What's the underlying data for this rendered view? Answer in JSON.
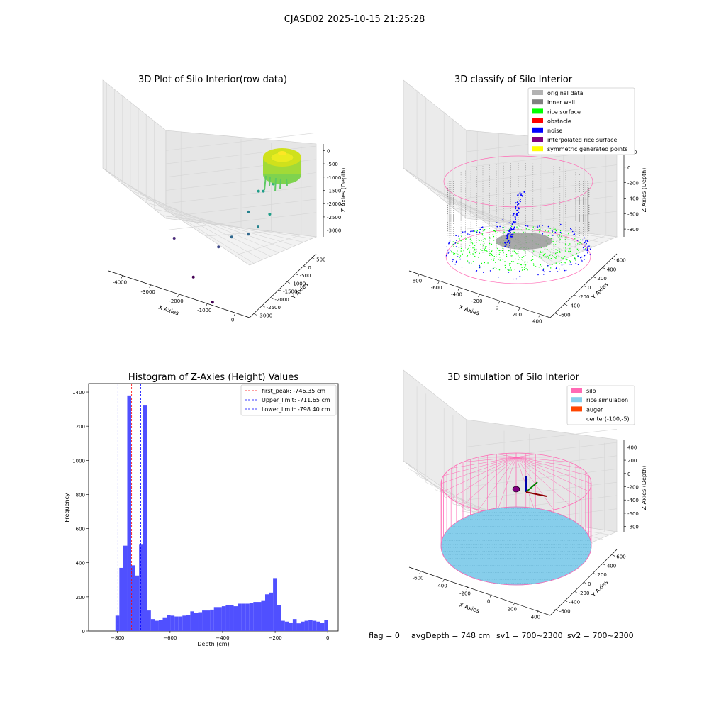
{
  "suptitle": "CJASD02 2025-10-15 21:25:28",
  "footer": {
    "flag": "flag = 0",
    "avg_depth": "avgDepth = 748 cm",
    "sv1": "sv1 = 700~2300",
    "sv2": "sv2 = 700~2300"
  },
  "colors": {
    "original_data": "#b3b3b3",
    "inner_wall": "#808080",
    "rice_surface": "#00ff00",
    "obstacle": "#ff0000",
    "noise": "#0000ff",
    "interpolated_rice_surface": "#800080",
    "symmetric_generated_points": "#ffff00",
    "silo": "#ff69b4",
    "rice_simulation": "#87ceeb",
    "auger": "#ff4500",
    "hist_bar": "#5050ff"
  },
  "chart_data": [
    {
      "type": "scatter",
      "projection": "3d",
      "title": "3D Plot of Silo Interior(row data)",
      "xlabel": "X Axies",
      "ylabel": "Y Axies",
      "zlabel": "Z Axies (Depth)",
      "xticks": [
        "-4000",
        "-3000",
        "-2000",
        "-1000",
        "0"
      ],
      "yticks": [
        "-3000",
        "-2500",
        "-2000",
        "-1500",
        "-1000",
        "-500",
        "0",
        "500"
      ],
      "zticks": [
        "-3000",
        "-2500",
        "-2000",
        "-1500",
        "-1000",
        "-500",
        "0"
      ],
      "xlim": [
        -4000,
        500
      ],
      "ylim": [
        -3200,
        700
      ],
      "zlim": [
        -3200,
        200
      ],
      "colormap": "viridis",
      "points": [
        {
          "x": -100,
          "y": 0,
          "z": -350
        },
        {
          "x": -50,
          "y": 50,
          "z": -450
        },
        {
          "x": -200,
          "y": -100,
          "z": -500
        },
        {
          "x": 0,
          "y": 100,
          "z": -600
        },
        {
          "x": -300,
          "y": 200,
          "z": -700
        },
        {
          "x": -150,
          "y": -200,
          "z": -800
        },
        {
          "x": -500,
          "y": -400,
          "z": -1000
        },
        {
          "x": -700,
          "y": -600,
          "z": -1200
        },
        {
          "x": -900,
          "y": -500,
          "z": -1300
        },
        {
          "x": -400,
          "y": -800,
          "z": -1500
        },
        {
          "x": -1000,
          "y": -900,
          "z": -1700
        },
        {
          "x": -600,
          "y": -1100,
          "z": -1800
        },
        {
          "x": -800,
          "y": -1300,
          "z": -2000
        },
        {
          "x": -1200,
          "y": -1500,
          "z": -2200
        },
        {
          "x": -1500,
          "y": -1700,
          "z": -2500
        },
        {
          "x": -2700,
          "y": -2000,
          "z": -2800
        },
        {
          "x": -1800,
          "y": -2600,
          "z": -3100
        },
        {
          "x": -1000,
          "y": -3000,
          "z": -3200
        }
      ]
    },
    {
      "type": "scatter",
      "projection": "3d",
      "title": "3D classify of Silo Interior",
      "xlabel": "X Axies",
      "ylabel": "Y Axies",
      "zlabel": "Z Axies (Depth)",
      "xticks": [
        "-800",
        "-600",
        "-400",
        "-200",
        "0",
        "200",
        "400"
      ],
      "yticks": [
        "-600",
        "-400",
        "-200",
        "0",
        "200",
        "400",
        "600"
      ],
      "zticks": [
        "-800",
        "-600",
        "-400",
        "-200",
        "0",
        "200"
      ],
      "legend": [
        {
          "label": "original data",
          "color": "#b3b3b3"
        },
        {
          "label": "inner wall",
          "color": "#808080"
        },
        {
          "label": "rice surface",
          "color": "#00ff00"
        },
        {
          "label": "obstacle",
          "color": "#ff0000"
        },
        {
          "label": "noise",
          "color": "#0000ff"
        },
        {
          "label": "interpolated rice surface",
          "color": "#800080"
        },
        {
          "label": "symmetric generated points",
          "color": "#ffff00"
        }
      ],
      "legend_position": "top-right"
    },
    {
      "type": "bar",
      "title": "Histogram of Z-Axies (Height) Values",
      "xlabel": "Depth (cm)",
      "ylabel": "Frequency",
      "xlim": [
        -910,
        40
      ],
      "ylim": [
        0,
        1450
      ],
      "xticks": [
        -800,
        -600,
        -400,
        -200,
        0
      ],
      "yticks": [
        0,
        200,
        400,
        600,
        800,
        1000,
        1200,
        1400
      ],
      "bin_width": 15,
      "bins_start": [
        -808,
        -793,
        -778,
        -763,
        -748,
        -733,
        -718,
        -703,
        -688,
        -673,
        -658,
        -643,
        -628,
        -613,
        -598,
        -583,
        -568,
        -553,
        -538,
        -523,
        -508,
        -493,
        -478,
        -463,
        -448,
        -433,
        -418,
        -403,
        -388,
        -373,
        -358,
        -343,
        -328,
        -313,
        -298,
        -283,
        -268,
        -253,
        -238,
        -223,
        -208,
        -193,
        -178,
        -163,
        -148,
        -133,
        -118,
        -103,
        -88,
        -73,
        -58,
        -43,
        -28,
        -13
      ],
      "counts": [
        90,
        370,
        500,
        1380,
        385,
        325,
        510,
        1325,
        120,
        70,
        60,
        65,
        80,
        95,
        90,
        85,
        85,
        90,
        95,
        115,
        105,
        110,
        120,
        120,
        125,
        140,
        140,
        145,
        150,
        150,
        145,
        160,
        160,
        160,
        165,
        170,
        170,
        180,
        215,
        225,
        310,
        150,
        60,
        55,
        50,
        70,
        45,
        55,
        60,
        65,
        60,
        55,
        50,
        65
      ],
      "vlines": [
        {
          "label": "first_peak: -746.35 cm",
          "x": -746.35,
          "color": "#ff0000"
        },
        {
          "label": "Upper_limit: -711.65 cm",
          "x": -711.65,
          "color": "#0000ff"
        },
        {
          "label": "Lower_limit: -798.40 cm",
          "x": -798.4,
          "color": "#0000ff"
        }
      ],
      "legend_position": "top-right"
    },
    {
      "type": "scatter",
      "projection": "3d",
      "title": "3D simulation of Silo Interior",
      "xlabel": "X Axies",
      "ylabel": "Y Axies",
      "zlabel": "Z Axies (Depth)",
      "xticks": [
        "-600",
        "-400",
        "-200",
        "0",
        "200",
        "400"
      ],
      "yticks": [
        "-600",
        "-400",
        "-200",
        "0",
        "200",
        "400",
        "600"
      ],
      "zticks": [
        "-800",
        "-600",
        "-400",
        "-200",
        "0",
        "200",
        "400"
      ],
      "legend": [
        {
          "label": "silo",
          "color": "#ff69b4"
        },
        {
          "label": "rice simulation",
          "color": "#87ceeb"
        },
        {
          "label": "auger",
          "color": "#ff4500"
        },
        {
          "label": "center(-100,-5)",
          "color": ""
        }
      ],
      "legend_position": "top-right"
    }
  ]
}
